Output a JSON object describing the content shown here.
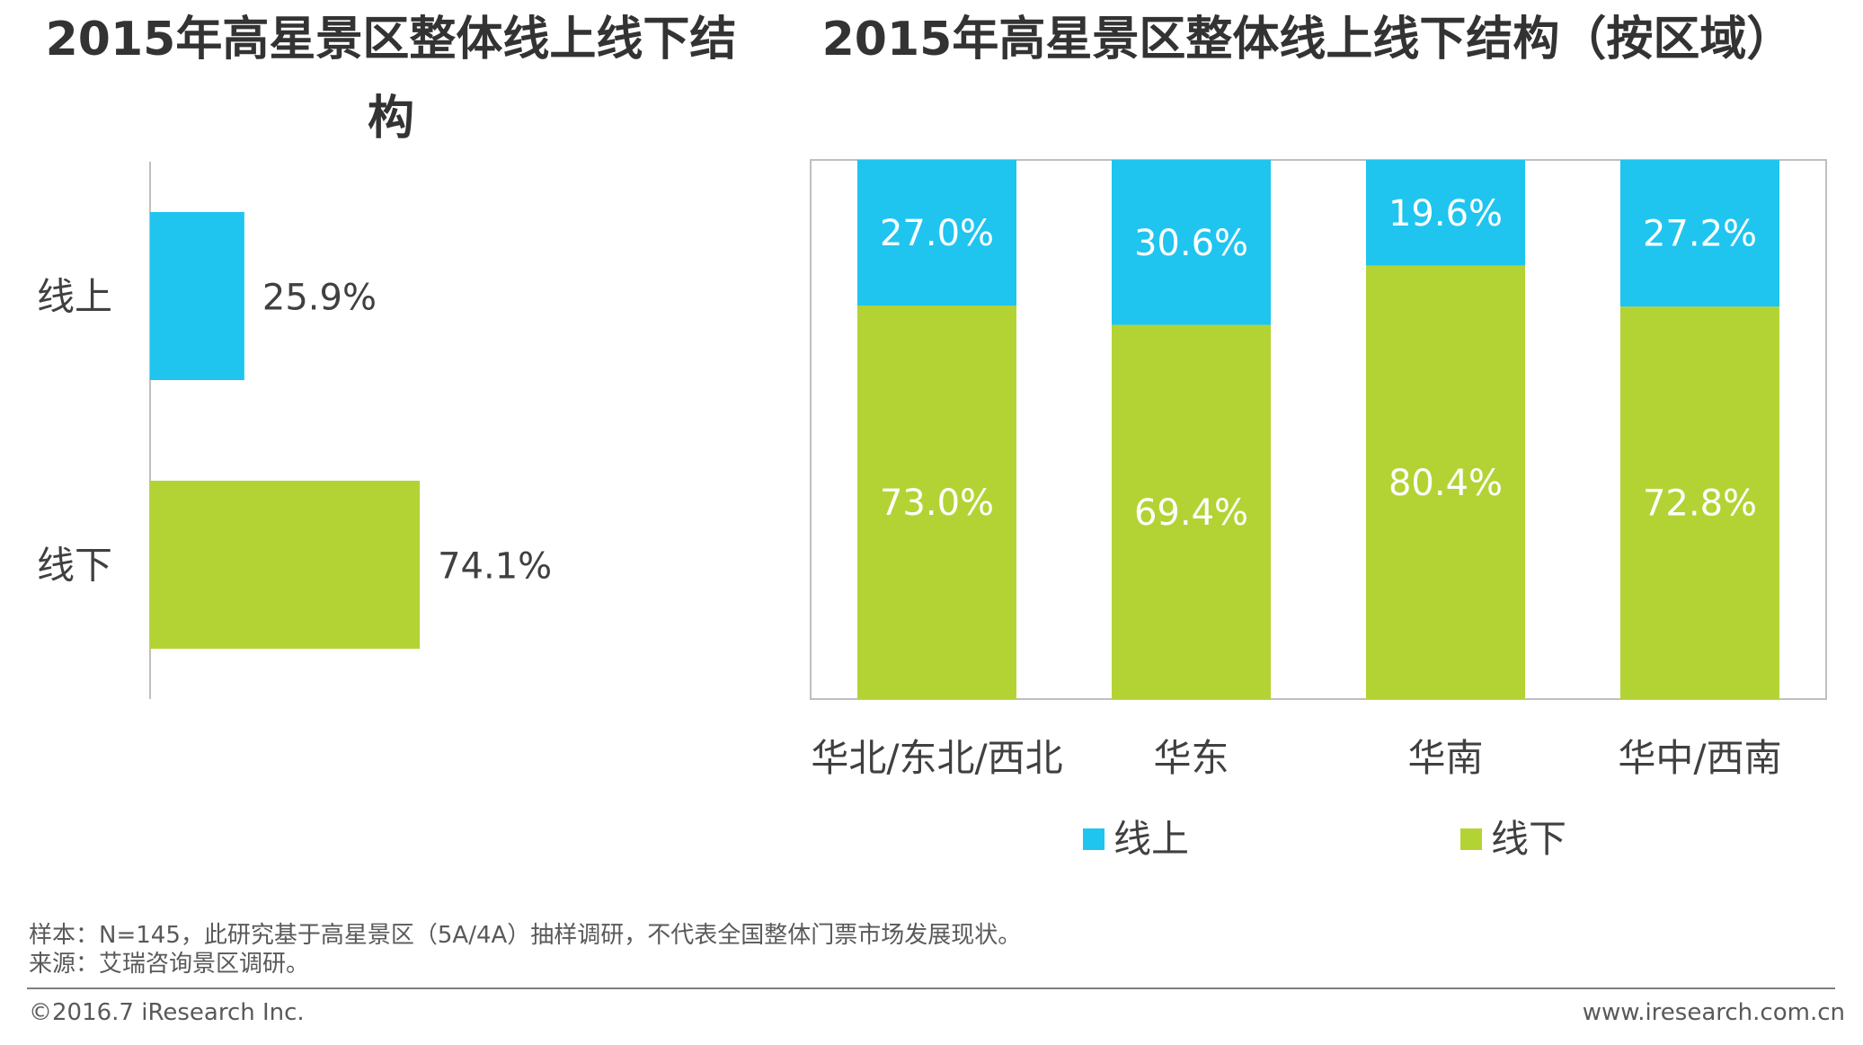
{
  "left_title": "2015年高星景区整体线上线下结构",
  "right_title": "2015年高星景区整体线上线下结构（按区域）",
  "chart_data": [
    {
      "type": "bar",
      "orientation": "horizontal",
      "title": "2015年高星景区整体线上线下结构",
      "categories": [
        "线上",
        "线下"
      ],
      "values": [
        25.9,
        74.1
      ],
      "labels": [
        "25.9%",
        "74.1%"
      ],
      "colors": [
        "#1FC5EF",
        "#B3D334"
      ],
      "xlim": [
        0,
        100
      ]
    },
    {
      "type": "bar",
      "stacked": true,
      "title": "2015年高星景区整体线上线下结构（按区域）",
      "categories": [
        "华北/东北/西北",
        "华东",
        "华南",
        "华中/西南"
      ],
      "series": [
        {
          "name": "线上",
          "color": "#1FC5EF",
          "values": [
            27.0,
            30.6,
            19.6,
            27.2
          ],
          "labels": [
            "27.0%",
            "30.6%",
            "19.6%",
            "27.2%"
          ]
        },
        {
          "name": "线下",
          "color": "#B3D334",
          "values": [
            73.0,
            69.4,
            80.4,
            72.8
          ],
          "labels": [
            "73.0%",
            "69.4%",
            "80.4%",
            "72.8%"
          ]
        }
      ],
      "ylim": [
        0,
        100
      ],
      "legend": "bottom"
    }
  ],
  "footer": {
    "sample_note": "样本：N=145，此研究基于高星景区（5A/4A）抽样调研，不代表全国整体门票市场发展现状。",
    "source_note": "来源：艾瑞咨询景区调研。",
    "copyright": "©2016.7 iResearch Inc.",
    "website": "www.iresearch.com.cn"
  }
}
